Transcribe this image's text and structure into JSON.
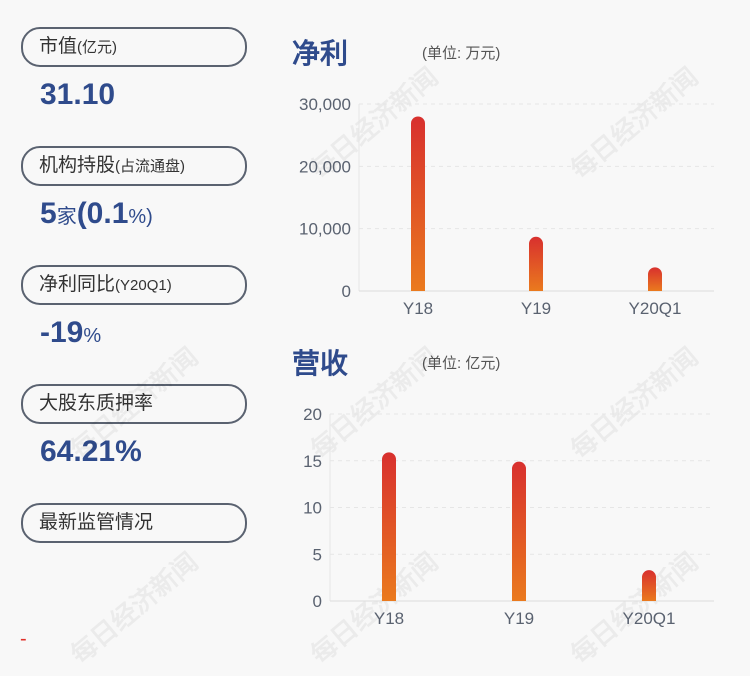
{
  "left": {
    "items": [
      {
        "label": "市值",
        "sub": "(亿元)",
        "value": "31.10",
        "value_suffix": ""
      },
      {
        "label": "机构持股",
        "sub": "(占流通盘)",
        "value_parts": [
          "5",
          "家",
          "(0.1",
          "%)"
        ]
      },
      {
        "label": "净利同比",
        "sub": "(Y20Q1)",
        "value": "-19",
        "value_suffix": "%"
      },
      {
        "label": "大股东质押率",
        "sub": "",
        "value": "64.21%",
        "value_suffix": ""
      },
      {
        "label": "最新监管情况",
        "sub": ""
      }
    ],
    "dash": "-"
  },
  "watermark": "每日经济新闻",
  "chart_data": [
    {
      "type": "bar",
      "title": "净利",
      "unit": "(单位: 万元)",
      "categories": [
        "Y18",
        "Y19",
        "Y20Q1"
      ],
      "values": [
        28000,
        8700,
        3800
      ],
      "ylim": [
        0,
        30000
      ],
      "yticks": [
        "0",
        "10,000",
        "20,000",
        "30,000"
      ],
      "grid": true,
      "colors": {
        "top": "#d8302e",
        "bottom": "#ea7a1e"
      }
    },
    {
      "type": "bar",
      "title": "营收",
      "unit": "(单位: 亿元)",
      "categories": [
        "Y18",
        "Y19",
        "Y20Q1"
      ],
      "values": [
        15.9,
        14.9,
        3.3
      ],
      "ylim": [
        0,
        20
      ],
      "yticks": [
        "0",
        "5",
        "10",
        "15",
        "20"
      ],
      "grid": true,
      "colors": {
        "top": "#d8302e",
        "bottom": "#ea7a1e"
      }
    }
  ]
}
